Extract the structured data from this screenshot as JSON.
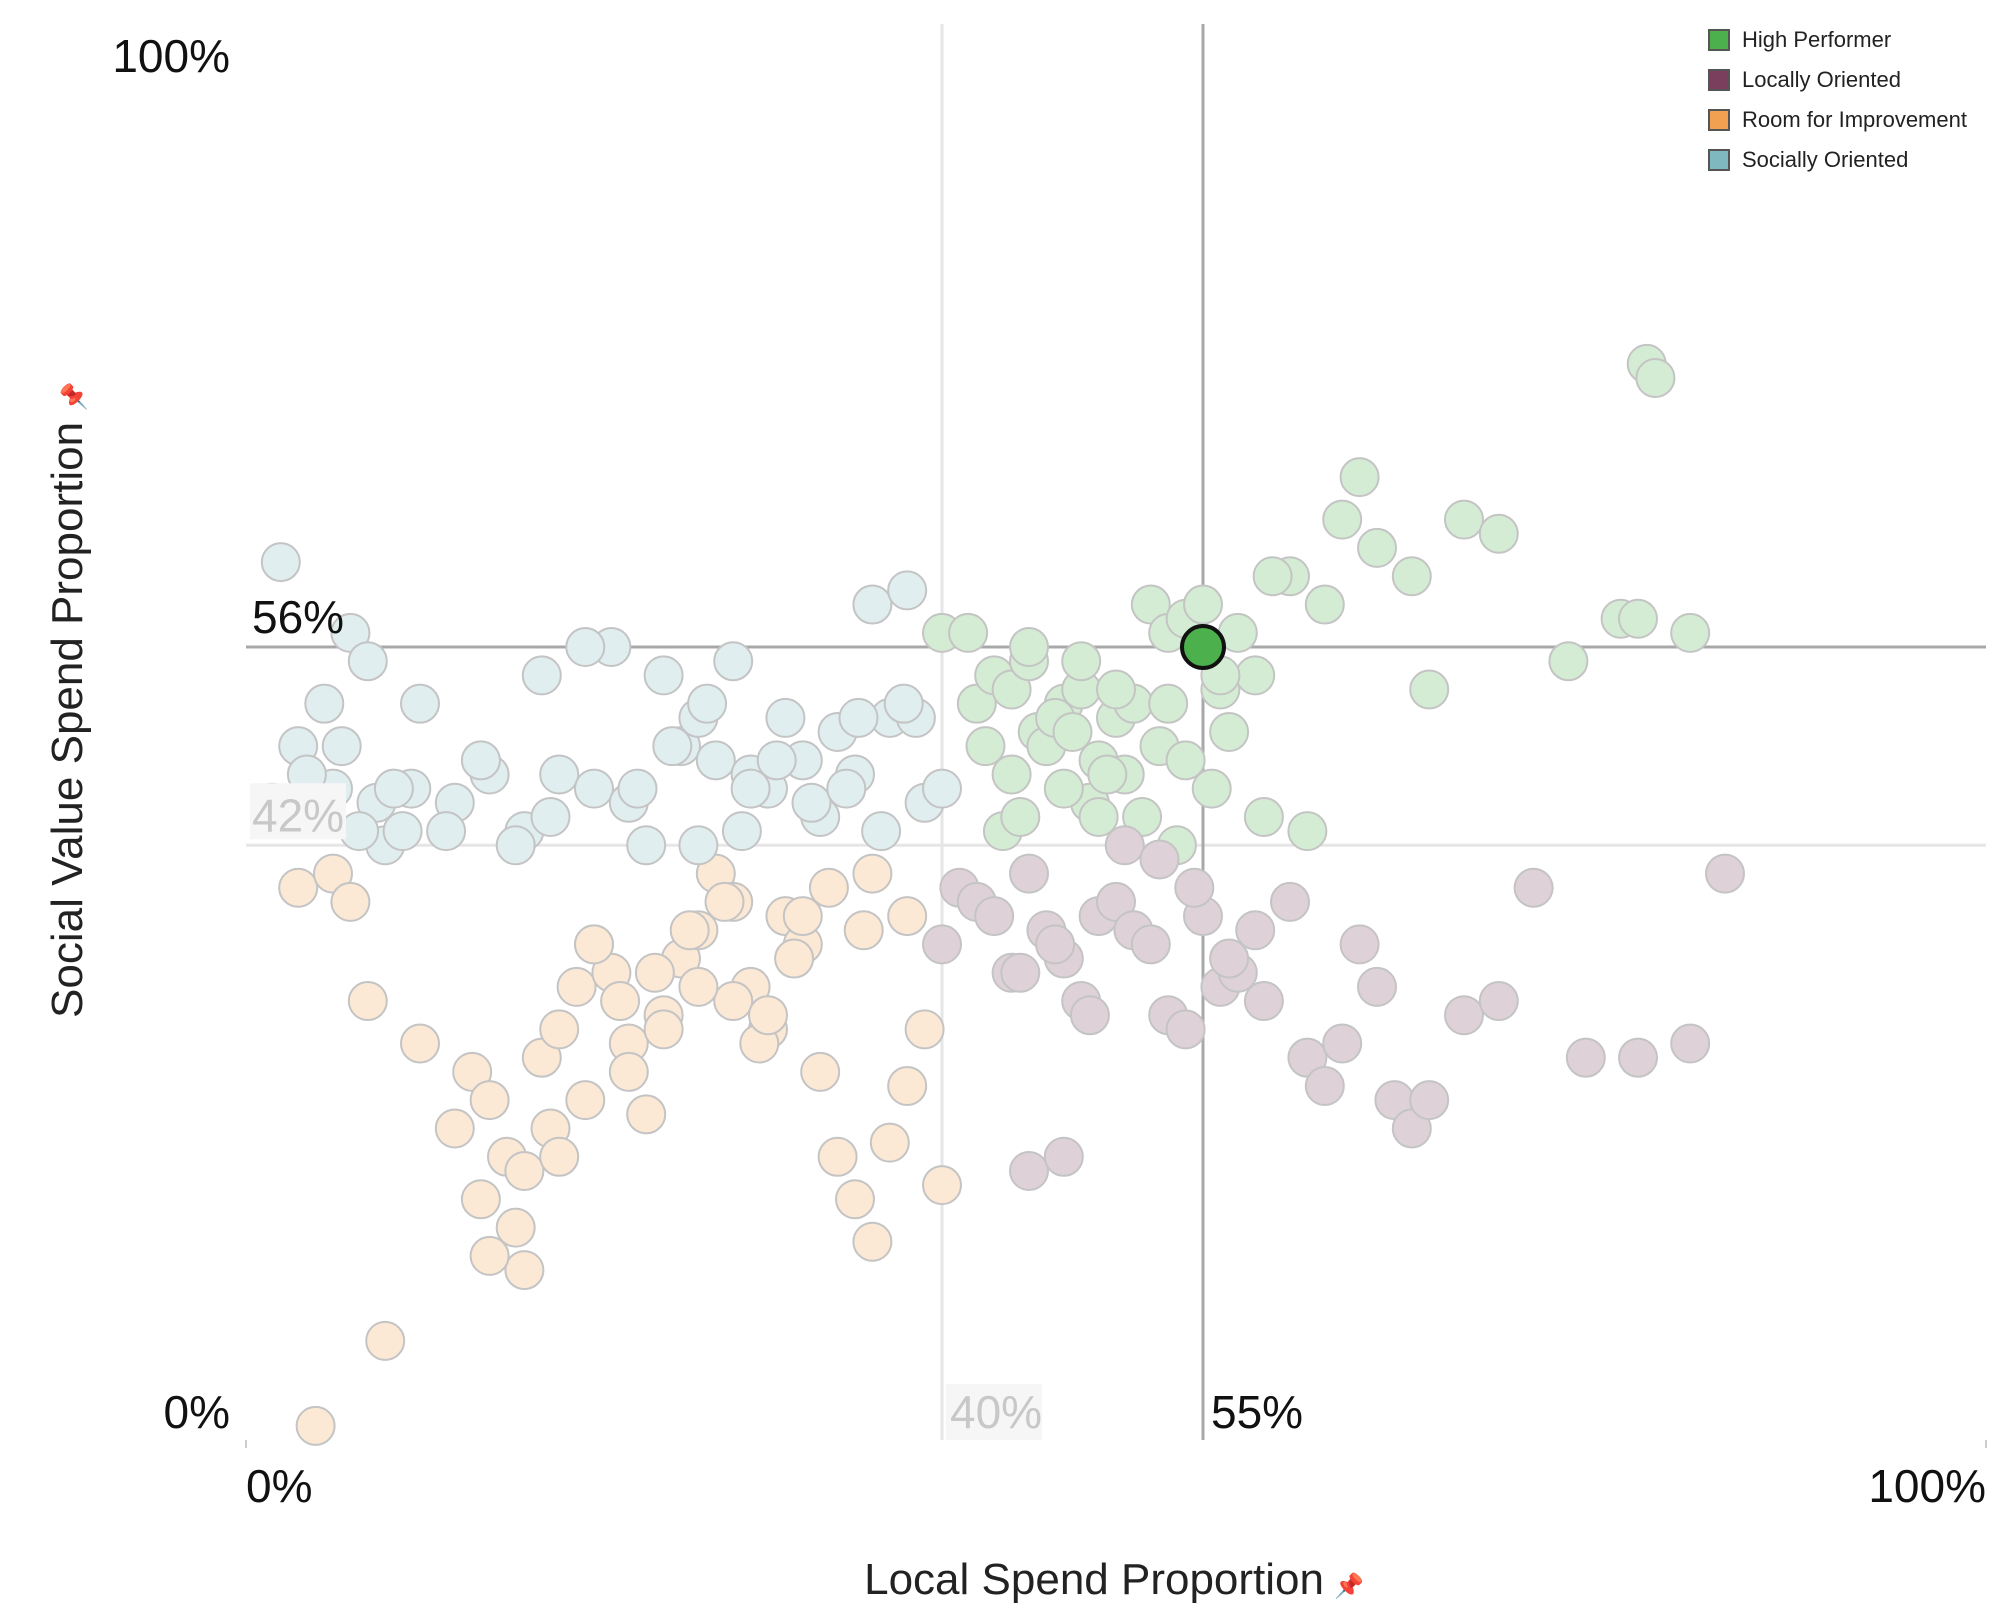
{
  "chart_data": {
    "type": "scatter",
    "xlabel": "Local Spend Proportion",
    "ylabel": "Social Value Spend Proportion",
    "xlim": [
      0,
      100
    ],
    "ylim": [
      0,
      100
    ],
    "x_tick_labels": [
      "0%",
      "100%"
    ],
    "y_tick_labels": [
      "0%",
      "100%"
    ],
    "reference_lines": {
      "selected_x": {
        "value": 55,
        "label": "55%"
      },
      "selected_y": {
        "value": 56,
        "label": "56%"
      },
      "median_x": {
        "value": 40,
        "label": "40%"
      },
      "median_y": {
        "value": 42,
        "label": "42%"
      }
    },
    "grid": false,
    "legend_position": "top-right",
    "series": [
      {
        "name": "High Performer",
        "color": "#4cb04c",
        "x": [
          40,
          41.5,
          42,
          43,
          44,
          45,
          45.5,
          46,
          47,
          48,
          48.5,
          49,
          50,
          50.5,
          51,
          52,
          53,
          54,
          55,
          56,
          57,
          58,
          60,
          62,
          63,
          64,
          65,
          67,
          68,
          70,
          72,
          76,
          79,
          83,
          80,
          80.5,
          81,
          42.5,
          43.5,
          44.5,
          46.5,
          47.5,
          49.5,
          51.5,
          53.5,
          55.5,
          56.5,
          58.5,
          61,
          52.5,
          48,
          45,
          47,
          50,
          54,
          56,
          59,
          44,
          49,
          53
        ],
        "y": [
          57,
          57,
          52,
          54,
          53,
          55,
          50,
          49,
          52,
          53,
          45,
          48,
          51,
          47,
          52,
          59,
          57,
          58,
          59,
          53,
          57,
          54,
          61,
          59,
          65,
          68,
          63,
          61,
          53,
          65,
          64,
          55,
          58,
          57,
          58,
          76,
          75,
          49,
          43,
          44,
          51,
          50,
          47,
          44,
          42,
          46,
          50,
          44,
          43,
          49,
          55,
          56,
          46,
          53,
          48,
          54,
          61,
          47,
          44,
          52
        ]
      },
      {
        "name": "Locally Oriented",
        "color": "#7b3f5e",
        "x": [
          40,
          41,
          42,
          43,
          44,
          45,
          46,
          47,
          48,
          49,
          50,
          51,
          52,
          53,
          54,
          55,
          56,
          57,
          58,
          60,
          61,
          62,
          63,
          64,
          65,
          66,
          67,
          68,
          70,
          72,
          74,
          77,
          80,
          83,
          85,
          44.5,
          46.5,
          48.5,
          50.5,
          52.5,
          54.5,
          56.5,
          58.5,
          45,
          47
        ],
        "y": [
          35,
          39,
          38,
          37,
          33,
          40,
          36,
          34,
          31,
          37,
          38,
          36,
          35,
          30,
          29,
          37,
          32,
          33,
          36,
          38,
          27,
          25,
          28,
          35,
          32,
          24,
          22,
          24,
          30,
          31,
          39,
          27,
          27,
          28,
          40,
          33,
          35,
          30,
          42,
          41,
          39,
          34,
          31,
          19,
          20
        ]
      },
      {
        "name": "Room for Improvement",
        "color": "#f0a050",
        "x": [
          3,
          5,
          6,
          7,
          10,
          12,
          13,
          14,
          15,
          16,
          17,
          18,
          19,
          20,
          21,
          22,
          23,
          24,
          25,
          26,
          27,
          28,
          29,
          30,
          31,
          32,
          33,
          34,
          35,
          36,
          37,
          38,
          39,
          40,
          13.5,
          15.5,
          17.5,
          19.5,
          21.5,
          23.5,
          25.5,
          27.5,
          29.5,
          31.5,
          33.5,
          35.5,
          16,
          18,
          20,
          24,
          28,
          32,
          36,
          38,
          4,
          8,
          14,
          22,
          26,
          30
        ],
        "y": [
          39,
          40,
          38,
          31,
          28,
          22,
          26,
          24,
          20,
          19,
          27,
          29,
          32,
          35,
          33,
          28,
          23,
          30,
          34,
          36,
          40,
          38,
          32,
          29,
          37,
          35,
          26,
          20,
          17,
          14,
          21,
          25,
          29,
          18,
          17,
          15,
          22,
          24,
          31,
          33,
          36,
          38,
          28,
          34,
          39,
          36,
          12,
          20,
          35,
          29,
          31,
          37,
          40,
          37,
          1,
          7,
          13,
          26,
          32,
          30
        ]
      },
      {
        "name": "Socially Oriented",
        "color": "#7fb8bf",
        "x": [
          2,
          3,
          4,
          5,
          6,
          7,
          8,
          9,
          10,
          12,
          14,
          16,
          18,
          20,
          21,
          22,
          23,
          24,
          25,
          26,
          27,
          28,
          29,
          30,
          31,
          32,
          33,
          34,
          35,
          36,
          37,
          38,
          39,
          40,
          3.5,
          5.5,
          7.5,
          9.5,
          11.5,
          13.5,
          15.5,
          17.5,
          19.5,
          22.5,
          24.5,
          26.5,
          28.5,
          30.5,
          32.5,
          34.5,
          36.5,
          38.5,
          35.2,
          37.8,
          1.5,
          4.5,
          6.5,
          8.5,
          17,
          26,
          29
        ],
        "y": [
          62,
          49,
          44,
          46,
          57,
          55,
          42,
          43,
          52,
          45,
          47,
          43,
          47,
          46,
          56,
          45,
          42,
          54,
          49,
          51,
          48,
          55,
          47,
          46,
          51,
          48,
          44,
          50,
          47,
          59,
          51,
          60,
          45,
          46,
          47,
          49,
          45,
          46,
          43,
          48,
          42,
          44,
          56,
          46,
          49,
          52,
          43,
          48,
          45,
          46,
          43,
          51,
          51,
          52,
          45,
          52,
          43,
          46,
          54,
          42,
          46
        ]
      }
    ],
    "selected_point": {
      "x": 55,
      "y": 56,
      "series": "High Performer"
    }
  },
  "legend": {
    "items": [
      {
        "label": "High Performer",
        "color": "#4cb04c"
      },
      {
        "label": "Locally Oriented",
        "color": "#7b3f5e"
      },
      {
        "label": "Room for Improvement",
        "color": "#f0a050"
      },
      {
        "label": "Socially Oriented",
        "color": "#7fb8bf"
      }
    ]
  },
  "icons": {
    "x_axis_pin": "pin-icon",
    "y_axis_pin": "pin-icon"
  }
}
